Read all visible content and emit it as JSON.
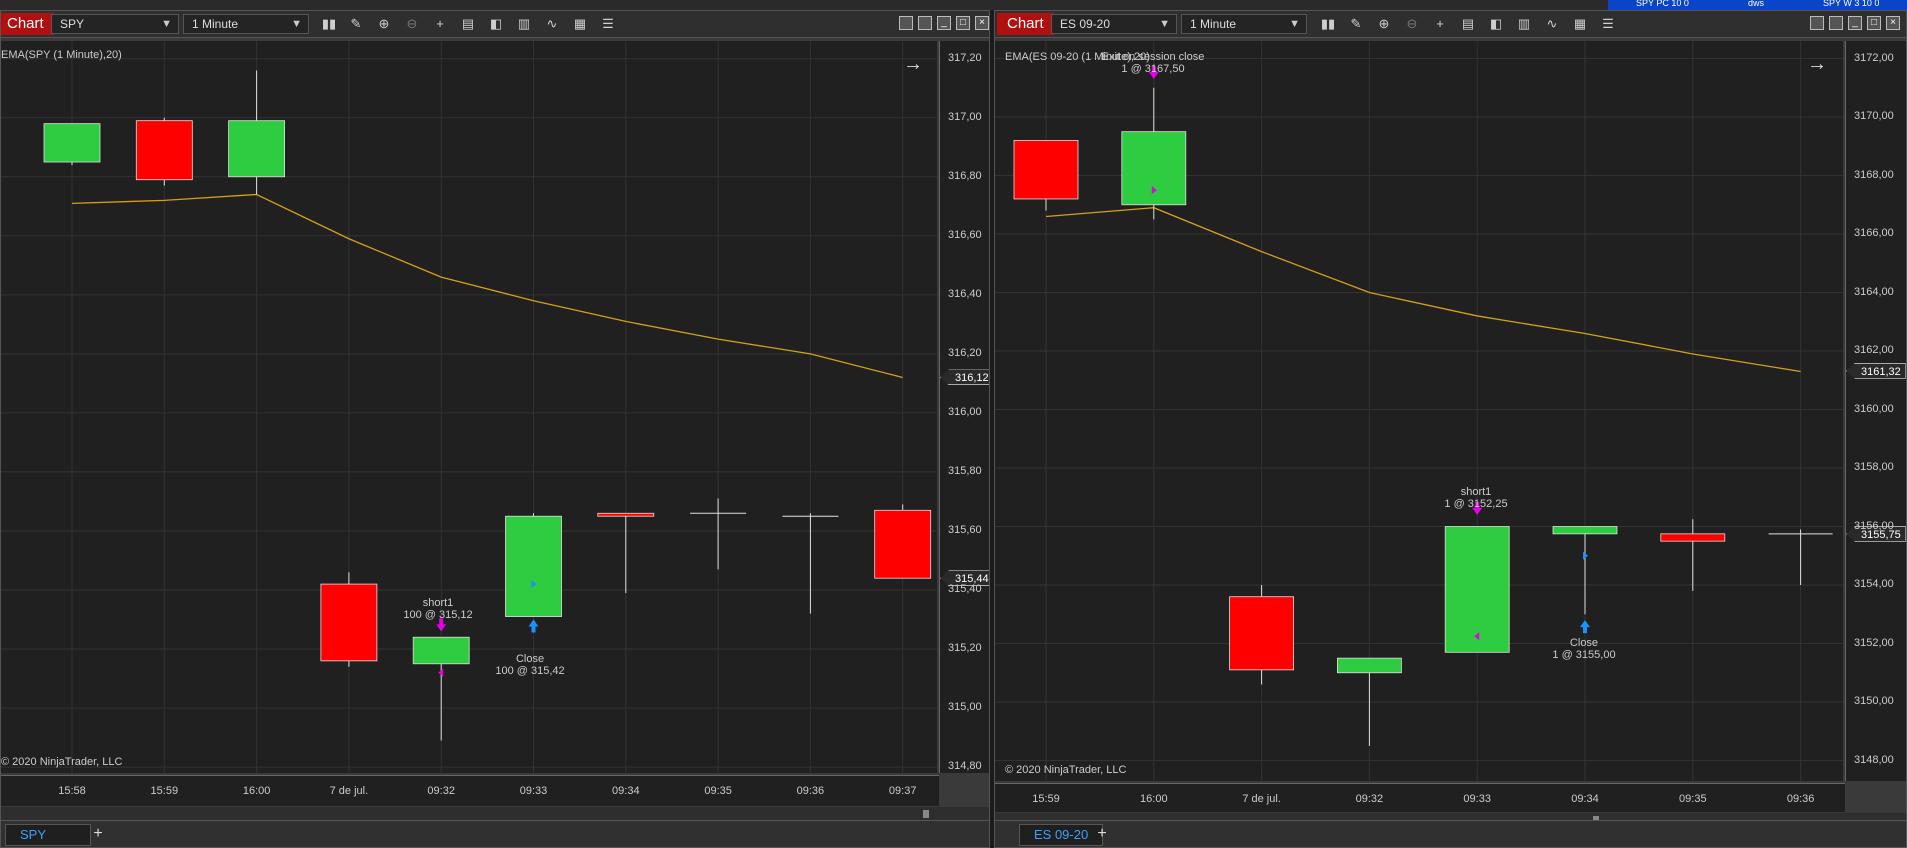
{
  "colors": {
    "up": "#2ecc40",
    "down": "#ff0000",
    "ema": "#d4a017",
    "buy": "#1e90ff",
    "sell": "#e600e6",
    "tab_active": "#b01010"
  },
  "top_bar": {
    "text_a": "SPY PC 10 0",
    "text_b": "dws",
    "text_c": "SPY W 3 10 0"
  },
  "left": {
    "chart_tab": "Chart",
    "instrument": "SPY",
    "interval": "1 Minute",
    "indicator_label": "EMA(SPY (1 Minute),20)",
    "copyright": "© 2020 NinjaTrader, LLC",
    "y_ticks": [
      "317,20",
      "317,00",
      "316,80",
      "316,60",
      "316,40",
      "316,20",
      "316,00",
      "315,80",
      "315,60",
      "315,40",
      "315,20",
      "315,00",
      "314,80"
    ],
    "x_ticks": [
      "15:58",
      "15:59",
      "16:00",
      "7 de jul.",
      "09:32",
      "09:33",
      "09:34",
      "09:35",
      "09:36",
      "09:37"
    ],
    "ema_tag": "316,12",
    "last_tag": "315,44",
    "bottom_tab": "SPY",
    "add_tab": "+",
    "annotations": {
      "short_name": "short1",
      "short_detail": "100 @ 315,12",
      "close_name": "Close",
      "close_detail": "100 @ 315,42"
    }
  },
  "right": {
    "chart_tab": "Chart",
    "instrument": "ES 09-20",
    "interval": "1 Minute",
    "indicator_label": "EMA(ES 09-20 (1 Minute),20)",
    "copyright": "© 2020 NinjaTrader, LLC",
    "y_ticks": [
      "3172,00",
      "3170,00",
      "3168,00",
      "3166,00",
      "3164,00",
      "3162,00",
      "3160,00",
      "3158,00",
      "3156,00",
      "3154,00",
      "3152,00",
      "3150,00",
      "3148,00"
    ],
    "x_ticks": [
      "15:59",
      "16:00",
      "7 de jul.",
      "09:32",
      "09:33",
      "09:34",
      "09:35",
      "09:36"
    ],
    "ema_tag": "3161,32",
    "last_tag": "3155,75",
    "bottom_tab": "ES 09-20",
    "add_tab": "+",
    "annotations": {
      "exit_name": "Exit on session close",
      "exit_detail": "1 @ 3167,50",
      "short_name": "short1",
      "short_detail": "1 @ 3152,25",
      "close_name": "Close",
      "close_detail": "1 @ 3155,00"
    }
  },
  "chart_data": [
    {
      "type": "candlestick",
      "instrument": "SPY",
      "x": [
        "15:58",
        "15:59",
        "16:00",
        "7 de jul.",
        "09:32",
        "09:33",
        "09:34",
        "09:35",
        "09:36",
        "09:37"
      ],
      "candles": [
        {
          "x": "15:58",
          "open": 316.85,
          "high": 316.98,
          "low": 316.84,
          "close": 316.98
        },
        {
          "x": "15:59",
          "open": 316.99,
          "high": 317.0,
          "low": 316.77,
          "close": 316.79
        },
        {
          "x": "16:00",
          "open": 316.8,
          "high": 317.16,
          "low": 316.74,
          "close": 316.99
        },
        {
          "x": "7 de jul.",
          "open": 315.42,
          "high": 315.46,
          "low": 315.14,
          "close": 315.16
        },
        {
          "x": "09:32",
          "open": 315.15,
          "high": 315.24,
          "low": 314.89,
          "close": 315.24
        },
        {
          "x": "09:33",
          "open": 315.31,
          "high": 315.66,
          "low": 315.31,
          "close": 315.65
        },
        {
          "x": "09:34",
          "open": 315.66,
          "high": 315.66,
          "low": 315.39,
          "close": 315.65
        },
        {
          "x": "09:35",
          "open": 315.66,
          "high": 315.71,
          "low": 315.47,
          "close": 315.66
        },
        {
          "x": "09:36",
          "open": 315.65,
          "high": 315.66,
          "low": 315.32,
          "close": 315.65
        },
        {
          "x": "09:37",
          "open": 315.67,
          "high": 315.69,
          "low": 315.44,
          "close": 315.44
        }
      ],
      "ema": [
        316.71,
        316.72,
        316.74,
        316.59,
        316.46,
        316.38,
        316.31,
        316.25,
        316.2,
        316.12
      ],
      "ylim": [
        314.78,
        317.26
      ]
    },
    {
      "type": "candlestick",
      "instrument": "ES 09-20",
      "x": [
        "15:59",
        "16:00",
        "7 de jul.",
        "09:32",
        "09:33",
        "09:34",
        "09:35",
        "09:36"
      ],
      "candles": [
        {
          "x": "15:59",
          "open": 3169.2,
          "high": 3169.2,
          "low": 3166.8,
          "close": 3167.2
        },
        {
          "x": "16:00",
          "open": 3167.0,
          "high": 3171.0,
          "low": 3166.5,
          "close": 3169.5
        },
        {
          "x": "7 de jul.",
          "open": 3153.6,
          "high": 3154.0,
          "low": 3150.6,
          "close": 3151.1
        },
        {
          "x": "09:32",
          "open": 3151.0,
          "high": 3151.5,
          "low": 3148.5,
          "close": 3151.5
        },
        {
          "x": "09:33",
          "open": 3151.7,
          "high": 3156.0,
          "low": 3151.7,
          "close": 3156.0
        },
        {
          "x": "09:34",
          "open": 3155.75,
          "high": 3156.0,
          "low": 3153.0,
          "close": 3156.0
        },
        {
          "x": "09:35",
          "open": 3155.75,
          "high": 3156.25,
          "low": 3153.8,
          "close": 3155.5
        },
        {
          "x": "09:36",
          "open": 3155.75,
          "high": 3155.9,
          "low": 3154.0,
          "close": 3155.75
        }
      ],
      "ema": [
        3166.6,
        3166.9,
        3165.4,
        3164.0,
        3163.2,
        3162.6,
        3161.9,
        3161.3
      ],
      "ylim": [
        3147.3,
        3172.6
      ]
    }
  ]
}
